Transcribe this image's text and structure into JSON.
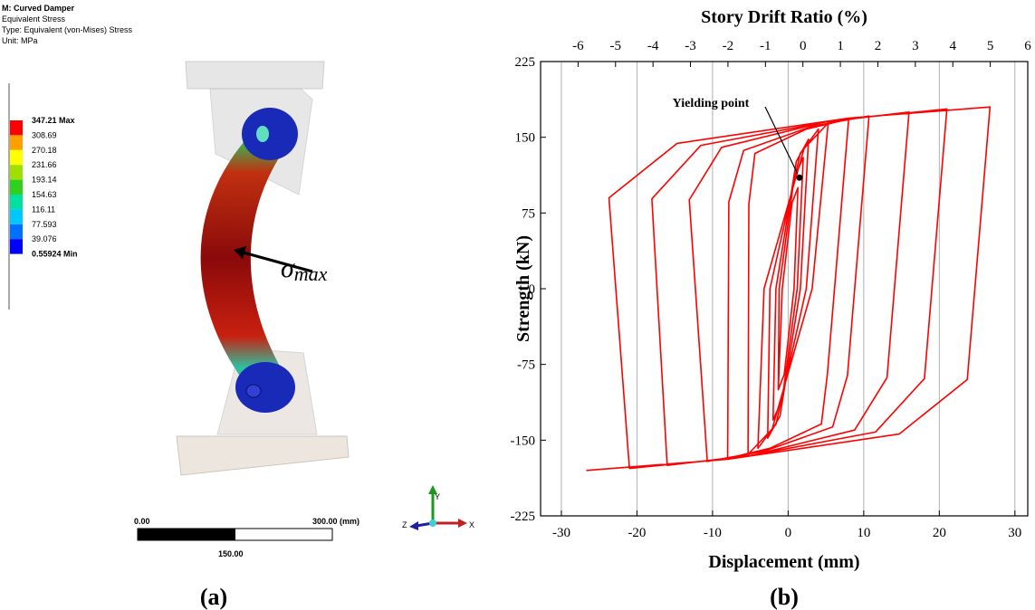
{
  "fea": {
    "title": "M: Curved Damper",
    "result": "Equivalent Stress",
    "type": "Type: Equivalent (von-Mises) Stress",
    "unit": "Unit: MPa",
    "legend": {
      "labels": [
        "347.21 Max",
        "308.69",
        "270.18",
        "231.66",
        "193.14",
        "154.63",
        "116.11",
        "77.593",
        "39.076",
        "0.55924 Min"
      ],
      "colors": [
        "#ff0000",
        "#ffa000",
        "#ffff00",
        "#a0e000",
        "#30d020",
        "#00e0a0",
        "#00c8ff",
        "#0070ff",
        "#0000ff"
      ]
    },
    "scale": {
      "start": "0.00",
      "end": "300.00 (mm)",
      "mid": "150.00"
    },
    "axes": {
      "y": "Y",
      "z": "Z",
      "x": "X"
    },
    "stress_label": {
      "symbol": "σ",
      "subscript": "max"
    }
  },
  "captions": {
    "a": "(a)",
    "b": "(b)"
  },
  "chart_data": {
    "type": "line",
    "x2label": "Story Drift Ratio (%)",
    "xlabel": "Displacement (mm)",
    "ylabel": "Strength (kN)",
    "xlim": [
      -32.75,
      31.7
    ],
    "xticks": [
      -30,
      -20,
      -10,
      0,
      10,
      20,
      30
    ],
    "x2lim": [
      -7,
      6
    ],
    "x2ticks": [
      -6,
      -5,
      -4,
      -3,
      -2,
      -1,
      0,
      1,
      2,
      3,
      4,
      5,
      6
    ],
    "ylim": [
      -225,
      225
    ],
    "yticks": [
      -225,
      -150,
      -75,
      0,
      75,
      150,
      225
    ],
    "grid": true,
    "color": "#ff0000",
    "annotation": {
      "text": "Yielding point",
      "x": 1.5,
      "y": 110
    },
    "x": [
      -1.3,
      -0.78,
      0.52,
      1.3,
      0.78,
      -0.52,
      -1.3,
      -1.2,
      0.8,
      2,
      1.2,
      -0.8,
      -2,
      -1.62,
      1.08,
      2.7,
      1.62,
      -1.08,
      -2.7,
      -2.4,
      1.6,
      4,
      2.4,
      -1.6,
      -4,
      -3.18,
      2.12,
      5.3,
      3.18,
      -2.12,
      -5.3,
      -5.2,
      -4.4,
      2.4,
      8,
      5.2,
      4.4,
      -2.4,
      -8,
      -7.85,
      -5.89,
      3.21,
      10.7,
      7.85,
      5.89,
      -3.21,
      -10.7,
      -13.08,
      -8.8,
      4.8,
      16,
      13.08,
      8.8,
      -4.8,
      -16,
      -18.03,
      -11.55,
      6.3,
      21,
      18.03,
      11.55,
      -6.3,
      -21,
      -23.7,
      -14.69,
      8.01,
      26.7,
      23.7,
      14.69,
      -8.01,
      -26.7
    ],
    "values": [
      -100,
      0,
      85,
      100,
      0,
      -85,
      -100,
      0,
      110,
      130,
      0,
      -110,
      -130,
      0,
      126,
      148,
      0,
      -126,
      -148,
      0,
      134,
      158,
      0,
      -134,
      -158,
      0,
      139,
      164,
      0,
      -139,
      -164,
      84,
      134,
      158,
      168,
      -84,
      -134,
      -158,
      -168,
      86,
      137,
      161,
      171,
      -86,
      -137,
      -161,
      -171,
      88,
      140,
      165,
      175,
      -88,
      -140,
      -165,
      -175,
      89,
      142,
      167,
      178,
      -89,
      -142,
      -167,
      -178,
      90,
      144,
      169,
      180,
      -90,
      -144,
      -169,
      -180
    ]
  }
}
